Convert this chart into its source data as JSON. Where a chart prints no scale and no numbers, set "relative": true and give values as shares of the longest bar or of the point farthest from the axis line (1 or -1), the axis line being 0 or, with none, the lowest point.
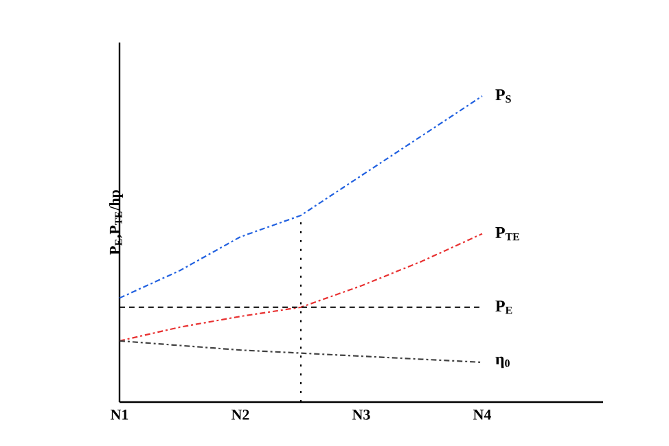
{
  "chart_data": {
    "type": "line",
    "ylabel": "P$_{E}$,P$_{TE}$/hp",
    "relative": true,
    "categories": [
      "N1",
      null,
      "N2",
      null,
      "N3",
      null,
      "N4",
      null,
      null
    ],
    "series": [
      {
        "name": "P$_{S}$",
        "color": "#2060e0",
        "line_style": "dashdot",
        "values": [
          0.34,
          0.43,
          0.54,
          0.61,
          0.74,
          0.87,
          1,
          null,
          null
        ]
      },
      {
        "name": "P$_{TE}$",
        "color": "#e83030",
        "line_style": "dashdot",
        "values": [
          0.2,
          0.245,
          0.28,
          0.31,
          0.38,
          0.46,
          0.55,
          null,
          null
        ]
      },
      {
        "name": "P$_{E}$",
        "color": "#000000",
        "line_style": "dashed",
        "values": [
          0.31,
          0.31,
          0.31,
          0.31,
          0.31,
          0.31,
          0.31,
          null,
          null
        ]
      },
      {
        "name": "η$_{0}$",
        "color": "#404040",
        "line_style": "dashdot",
        "values": [
          0.2,
          0.185,
          0.17,
          0.16,
          0.15,
          0.14,
          0.13,
          null,
          null
        ]
      }
    ]
  }
}
